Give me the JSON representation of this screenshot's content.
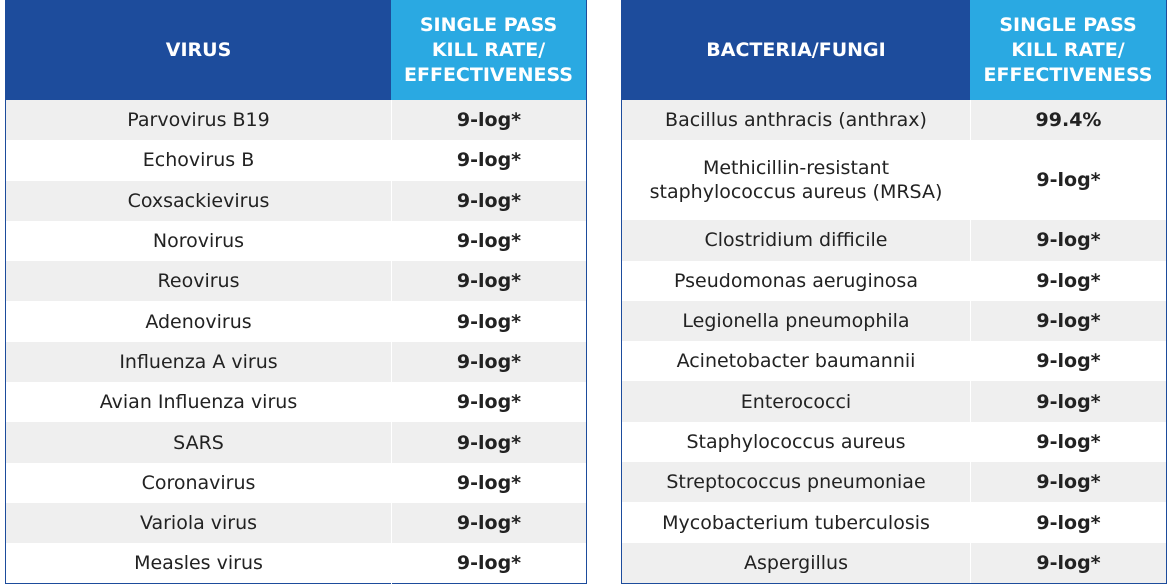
{
  "tables": [
    {
      "headers": [
        "VIRUS",
        "SINGLE PASS KILL RATE/ EFFECTIVENESS"
      ],
      "rows": [
        [
          "Parvovirus B19",
          "9-log*"
        ],
        [
          "Echovirus B",
          "9-log*"
        ],
        [
          "Coxsackievirus",
          "9-log*"
        ],
        [
          "Norovirus",
          "9-log*"
        ],
        [
          "Reovirus",
          "9-log*"
        ],
        [
          "Adenovirus",
          "9-log*"
        ],
        [
          "Influenza A virus",
          "9-log*"
        ],
        [
          "Avian Influenza virus",
          "9-log*"
        ],
        [
          "SARS",
          "9-log*"
        ],
        [
          "Coronavirus",
          "9-log*"
        ],
        [
          "Variola virus",
          "9-log*"
        ],
        [
          "Measles virus",
          "9-log*"
        ]
      ]
    },
    {
      "headers": [
        "BACTERIA/FUNGI",
        "SINGLE PASS KILL RATE/ EFFECTIVENESS"
      ],
      "rows": [
        [
          "Bacillus anthracis (anthrax)",
          "99.4%"
        ],
        [
          "Methicillin-resistant staphylococcus aureus (MRSA)",
          "9-log*"
        ],
        [
          "Clostridium difficile",
          "9-log*"
        ],
        [
          "Pseudomonas aeruginosa",
          "9-log*"
        ],
        [
          "Legionella pneumophila",
          "9-log*"
        ],
        [
          "Acinetobacter baumannii",
          "9-log*"
        ],
        [
          "Enterococci",
          "9-log*"
        ],
        [
          "Staphylococcus aureus",
          "9-log*"
        ],
        [
          "Streptococcus pneumoniae",
          "9-log*"
        ],
        [
          "Mycobacterium tuberculosis",
          "9-log*"
        ],
        [
          "Aspergillus",
          "9-log*"
        ]
      ]
    }
  ]
}
